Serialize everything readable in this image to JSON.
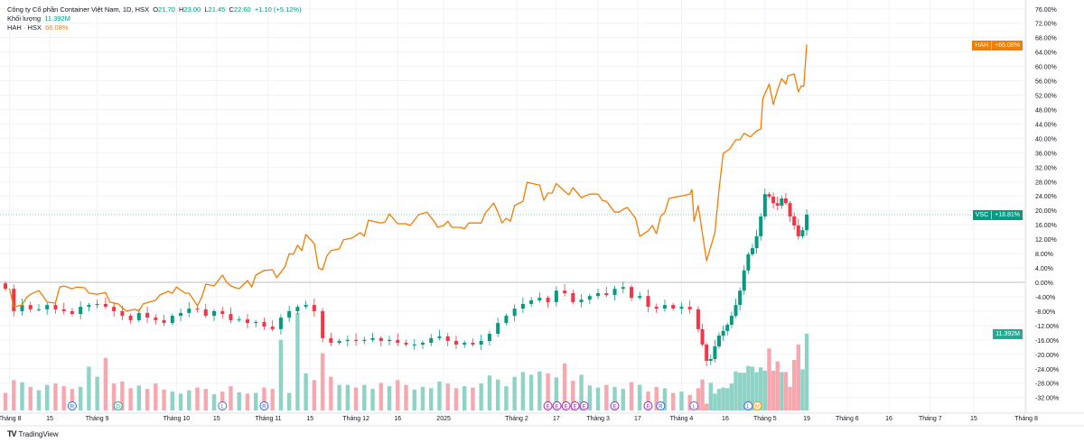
{
  "legend": {
    "title": "Công ty Cổ phần Container Việt Nam, 1D, HSX",
    "o_label": "O",
    "o": "21.70",
    "h_label": "H",
    "h": "23.00",
    "l_label": "L",
    "l": "21.45",
    "c_label": "C",
    "c": "22.60",
    "change": "+1.10 (+5.12%)",
    "volume_label": "Khối lượng",
    "volume": "11.392M",
    "compare_label": "HAH · HSX",
    "compare_value": "66.08%"
  },
  "badges": {
    "hah": {
      "symbol": "HAH",
      "value": "+66.08%",
      "color": "#f57c00"
    },
    "vsc": {
      "symbol": "VSC",
      "value": "+18.81%",
      "color": "#089981"
    },
    "volume": {
      "value": "11.392M",
      "color": "#22ab94"
    }
  },
  "footer": {
    "brand": "TradingView"
  },
  "chart_data": {
    "type": "candlestick-compare",
    "title": "Công ty Cổ phần Container Việt Nam, 1D, HSX",
    "ylabel": "% change",
    "ylim": [
      -34,
      78
    ],
    "y_ticks": [
      "76.00%",
      "72.00%",
      "68.00%",
      "64.00%",
      "60.00%",
      "56.00%",
      "52.00%",
      "48.00%",
      "44.00%",
      "40.00%",
      "36.00%",
      "32.00%",
      "28.00%",
      "24.00%",
      "20.00%",
      "16.00%",
      "12.00%",
      "8.00%",
      "4.00%",
      "0.00%",
      "-4.00%",
      "-8.00%",
      "-12.00%",
      "-16.00%",
      "-20.00%",
      "-24.00%",
      "-28.00%",
      "-32.00%"
    ],
    "y_tick_values": [
      76,
      72,
      68,
      64,
      60,
      56,
      52,
      48,
      44,
      40,
      36,
      32,
      28,
      24,
      20,
      16,
      12,
      8,
      4,
      0,
      -4,
      -8,
      -12,
      -16,
      -20,
      -24,
      -28,
      -32
    ],
    "x_ticks": [
      {
        "label": "Tháng 8",
        "day": 1
      },
      {
        "label": "15",
        "day": 10.6
      },
      {
        "label": "Tháng 9",
        "day": 22
      },
      {
        "label": "Tháng 10",
        "day": 41
      },
      {
        "label": "15",
        "day": 50.6
      },
      {
        "label": "Tháng 11",
        "day": 63
      },
      {
        "label": "15",
        "day": 73
      },
      {
        "label": "Tháng 12",
        "day": 84
      },
      {
        "label": "16",
        "day": 94
      },
      {
        "label": "2025",
        "day": 105
      },
      {
        "label": "Tháng 2",
        "day": 122.5
      },
      {
        "label": "17",
        "day": 132
      },
      {
        "label": "Tháng 3",
        "day": 142
      },
      {
        "label": "17",
        "day": 151.5
      },
      {
        "label": "Tháng 4",
        "day": 162
      },
      {
        "label": "16",
        "day": 172.5
      },
      {
        "label": "Tháng 5",
        "day": 182
      },
      {
        "label": "19",
        "day": 192
      },
      {
        "label": "Tháng 6",
        "day": 201.7
      },
      {
        "label": "16",
        "day": 211.7
      },
      {
        "label": "Tháng 7",
        "day": 221.6
      },
      {
        "label": "15",
        "day": 232
      },
      {
        "label": "Tháng 8",
        "day": 244.6
      }
    ],
    "vsc": {
      "name": "VSC",
      "sampling": {
        "split_index": 83,
        "step_before": 2,
        "step_after": 1
      },
      "closes": [
        -1.8,
        -8,
        -6.3,
        -7.5,
        -7.5,
        -6.3,
        -7.5,
        -8,
        -8.8,
        -6.8,
        -6.3,
        -6,
        -6.8,
        -8,
        -9.3,
        -10.5,
        -8.5,
        -9.8,
        -10.5,
        -11.3,
        -9.3,
        -8.5,
        -7.3,
        -7.5,
        -9.3,
        -8,
        -8.8,
        -10.5,
        -10.3,
        -11.3,
        -11,
        -12.3,
        -13,
        -9.8,
        -8,
        -6.8,
        -6.3,
        -8,
        -15.5,
        -16.8,
        -16.3,
        -16,
        -16.3,
        -16,
        -15.5,
        -16.3,
        -16,
        -16.8,
        -17.3,
        -17.3,
        -16.8,
        -15.5,
        -15,
        -16.3,
        -17.3,
        -16.8,
        -17.3,
        -16.3,
        -14.3,
        -11.3,
        -9.3,
        -7.3,
        -6,
        -5,
        -4.3,
        -5.5,
        -2.3,
        -3,
        -5.5,
        -4.8,
        -3.8,
        -3,
        -3.5,
        -1.8,
        -1.3,
        -4.3,
        -3.8,
        -6.8,
        -7.3,
        -6.3,
        -7.3,
        -6.8,
        -7.5,
        -13,
        -17.3,
        -21.8,
        -21.3,
        -17.8,
        -14.8,
        -13.5,
        -11.8,
        -9.3,
        -6.3,
        -2.3,
        3.3,
        7.8,
        9.5,
        12.8,
        18.3,
        24.5,
        23.8,
        22,
        21.3,
        23.3,
        22,
        18.3,
        15.8,
        12.8,
        14.5,
        18.81
      ],
      "volumes_m": [
        2.6,
        4.5,
        4.2,
        3.5,
        3,
        3.8,
        4,
        3.6,
        3.2,
        3.5,
        6.5,
        5,
        7.8,
        4,
        4.3,
        3.3,
        3.7,
        3.2,
        4,
        3.1,
        2.8,
        2.5,
        3,
        3.4,
        3.2,
        2.4,
        2.8,
        3.6,
        2.7,
        2.5,
        2.6,
        3.4,
        3.2,
        10.5,
        2.6,
        14.5,
        5.5,
        4.5,
        8.5,
        5,
        3.8,
        3.8,
        3.4,
        3.8,
        3.2,
        4.1,
        3.6,
        4.5,
        3.8,
        3.1,
        3.5,
        3.3,
        4.3,
        4,
        3.3,
        3.6,
        3.4,
        4,
        5.2,
        4.6,
        3.6,
        5,
        5.7,
        5.3,
        5.8,
        5.5,
        4.9,
        7,
        4.4,
        5.3,
        3.7,
        3.4,
        3.8,
        3.5,
        3.2,
        4.2,
        3.8,
        2.8,
        3.5,
        3.3,
        2.6,
        2.8,
        2.3,
        3.3,
        4.6,
        1.0,
        4.1,
        2.5,
        3.2,
        3.4,
        3.3,
        4,
        5.8,
        5.6,
        5.6,
        6.6,
        6.5,
        5.7,
        6.4,
        5.9,
        9.2,
        5.9,
        7.3,
        5.7,
        5.7,
        3.5,
        7.5,
        9.8,
        6.1,
        11.392
      ],
      "last": 18.81,
      "up_color": "#089981",
      "down_color": "#f23645"
    },
    "hah": {
      "name": "HAH · HSX",
      "color": "#f57c00",
      "points": [
        [
          1,
          -1.8
        ],
        [
          2,
          -6.8
        ],
        [
          4,
          -6.3
        ],
        [
          5,
          -4.3
        ],
        [
          6,
          -3.3
        ],
        [
          8,
          -2.3
        ],
        [
          9,
          -3.8
        ],
        [
          10,
          -5.5
        ],
        [
          12,
          -5.8
        ],
        [
          13,
          -1.3
        ],
        [
          14,
          -1
        ],
        [
          16,
          -1.8
        ],
        [
          17,
          -1.3
        ],
        [
          19,
          -1.5
        ],
        [
          20,
          -3
        ],
        [
          22,
          -3.3
        ],
        [
          24,
          -2.8
        ],
        [
          25,
          -5.5
        ],
        [
          27,
          -6
        ],
        [
          29,
          -8
        ],
        [
          31,
          -7.5
        ],
        [
          32,
          -8
        ],
        [
          33,
          -6
        ],
        [
          36,
          -5
        ],
        [
          37,
          -3.5
        ],
        [
          39,
          -2.5
        ],
        [
          40,
          -3
        ],
        [
          41,
          -1.3
        ],
        [
          43,
          -3
        ],
        [
          44,
          -3
        ],
        [
          46,
          -6.5
        ],
        [
          47,
          -4.3
        ],
        [
          48,
          -0.5
        ],
        [
          50,
          -1
        ],
        [
          52,
          2
        ],
        [
          53,
          0
        ],
        [
          54,
          -1
        ],
        [
          56,
          -1.8
        ],
        [
          58,
          0.5
        ],
        [
          59,
          -1.3
        ],
        [
          60,
          2
        ],
        [
          62,
          3.3
        ],
        [
          64,
          3.5
        ],
        [
          65,
          1.3
        ],
        [
          66,
          2.8
        ],
        [
          67,
          4.3
        ],
        [
          68,
          8
        ],
        [
          69,
          7.8
        ],
        [
          70,
          10.3
        ],
        [
          71,
          8.8
        ],
        [
          72,
          13.3
        ],
        [
          74,
          10.8
        ],
        [
          75,
          4
        ],
        [
          76,
          3.5
        ],
        [
          77,
          7.3
        ],
        [
          78,
          8.8
        ],
        [
          80,
          9.3
        ],
        [
          81,
          11.8
        ],
        [
          83,
          12.3
        ],
        [
          85,
          13.8
        ],
        [
          86,
          12.8
        ],
        [
          87,
          17.3
        ],
        [
          88,
          17
        ],
        [
          90,
          16.5
        ],
        [
          91,
          16.8
        ],
        [
          92,
          19
        ],
        [
          94,
          16.3
        ],
        [
          96,
          16.3
        ],
        [
          97,
          15.8
        ],
        [
          99,
          18.8
        ],
        [
          101,
          19.5
        ],
        [
          103,
          16.5
        ],
        [
          103.5,
          15.3
        ],
        [
          105,
          15.8
        ],
        [
          106,
          17
        ],
        [
          107,
          15.3
        ],
        [
          109,
          15.3
        ],
        [
          110,
          14.8
        ],
        [
          111,
          16.5
        ],
        [
          112,
          16.5
        ],
        [
          114,
          16.5
        ],
        [
          115,
          19.3
        ],
        [
          117,
          22
        ],
        [
          118,
          19.5
        ],
        [
          119,
          16.5
        ],
        [
          120,
          17.8
        ],
        [
          121,
          17
        ],
        [
          122,
          21.3
        ],
        [
          124,
          22.5
        ],
        [
          125,
          27.8
        ],
        [
          128,
          27
        ],
        [
          129,
          22.8
        ],
        [
          130,
          24.8
        ],
        [
          131,
          24.8
        ],
        [
          132,
          27.5
        ],
        [
          134,
          25.3
        ],
        [
          135,
          24.3
        ],
        [
          136,
          26.3
        ],
        [
          138,
          23.5
        ],
        [
          138.5,
          23.8
        ],
        [
          140,
          24.5
        ],
        [
          142,
          24.5
        ],
        [
          143,
          22.8
        ],
        [
          144,
          22.5
        ],
        [
          146,
          19.5
        ],
        [
          147,
          19.5
        ],
        [
          148,
          20.3
        ],
        [
          149,
          20.8
        ],
        [
          151,
          17.8
        ],
        [
          152,
          12.8
        ],
        [
          154,
          14.3
        ],
        [
          155,
          15.8
        ],
        [
          156,
          13.5
        ],
        [
          157,
          18.3
        ],
        [
          158,
          19.5
        ],
        [
          159,
          23.3
        ],
        [
          161,
          23.8
        ],
        [
          162,
          24
        ],
        [
          164,
          24.5
        ],
        [
          164.5,
          25.8
        ],
        [
          165,
          17
        ],
        [
          166,
          21.3
        ],
        [
          168,
          6
        ],
        [
          170,
          13.8
        ],
        [
          171,
          25.8
        ],
        [
          172,
          35.8
        ],
        [
          173.5,
          37
        ],
        [
          175,
          39.6
        ],
        [
          176,
          39.6
        ],
        [
          177,
          41.4
        ],
        [
          178.5,
          40.4
        ],
        [
          180,
          42.1
        ],
        [
          181,
          42.6
        ],
        [
          181.5,
          51.1
        ],
        [
          183,
          55.1
        ],
        [
          184,
          49.4
        ],
        [
          185,
          53.4
        ],
        [
          186,
          56.6
        ],
        [
          187,
          55.1
        ],
        [
          187.5,
          57.4
        ],
        [
          189,
          57.9
        ],
        [
          190,
          52.9
        ],
        [
          190.7,
          54.6
        ],
        [
          191.3,
          54.4
        ],
        [
          192,
          66.08
        ]
      ],
      "last": 66.08
    },
    "events": [
      {
        "day": 16,
        "letter": "R",
        "color": "#2962ff"
      },
      {
        "day": 27,
        "letter": "D",
        "color": "#22ab94"
      },
      {
        "day": 52,
        "letter": "L",
        "color": "#5c6bc0"
      },
      {
        "day": 62,
        "letter": "R",
        "color": "#2962ff"
      },
      {
        "day": 130,
        "letter": "E",
        "color": "#9c27b0"
      },
      {
        "day": 131.2,
        "letter": "E",
        "color": "#9c27b0"
      },
      {
        "day": 132.4,
        "letter": "E",
        "color": "#9c27b0"
      },
      {
        "day": 133.6,
        "letter": "E",
        "color": "#9c27b0"
      },
      {
        "day": 135,
        "letter": "E",
        "color": "#9c27b0"
      },
      {
        "day": 146,
        "letter": "E",
        "color": "#9c27b0"
      },
      {
        "day": 154,
        "letter": "E",
        "color": "#9c27b0"
      },
      {
        "day": 157,
        "letter": "R",
        "color": "#2962ff"
      },
      {
        "day": 165,
        "letter": "L",
        "color": "#5c6bc0"
      },
      {
        "day": 178,
        "letter": "L",
        "color": "#2962ff"
      },
      {
        "day": 179,
        "letter": "M",
        "color": "#ff9800"
      }
    ],
    "grid": true
  }
}
